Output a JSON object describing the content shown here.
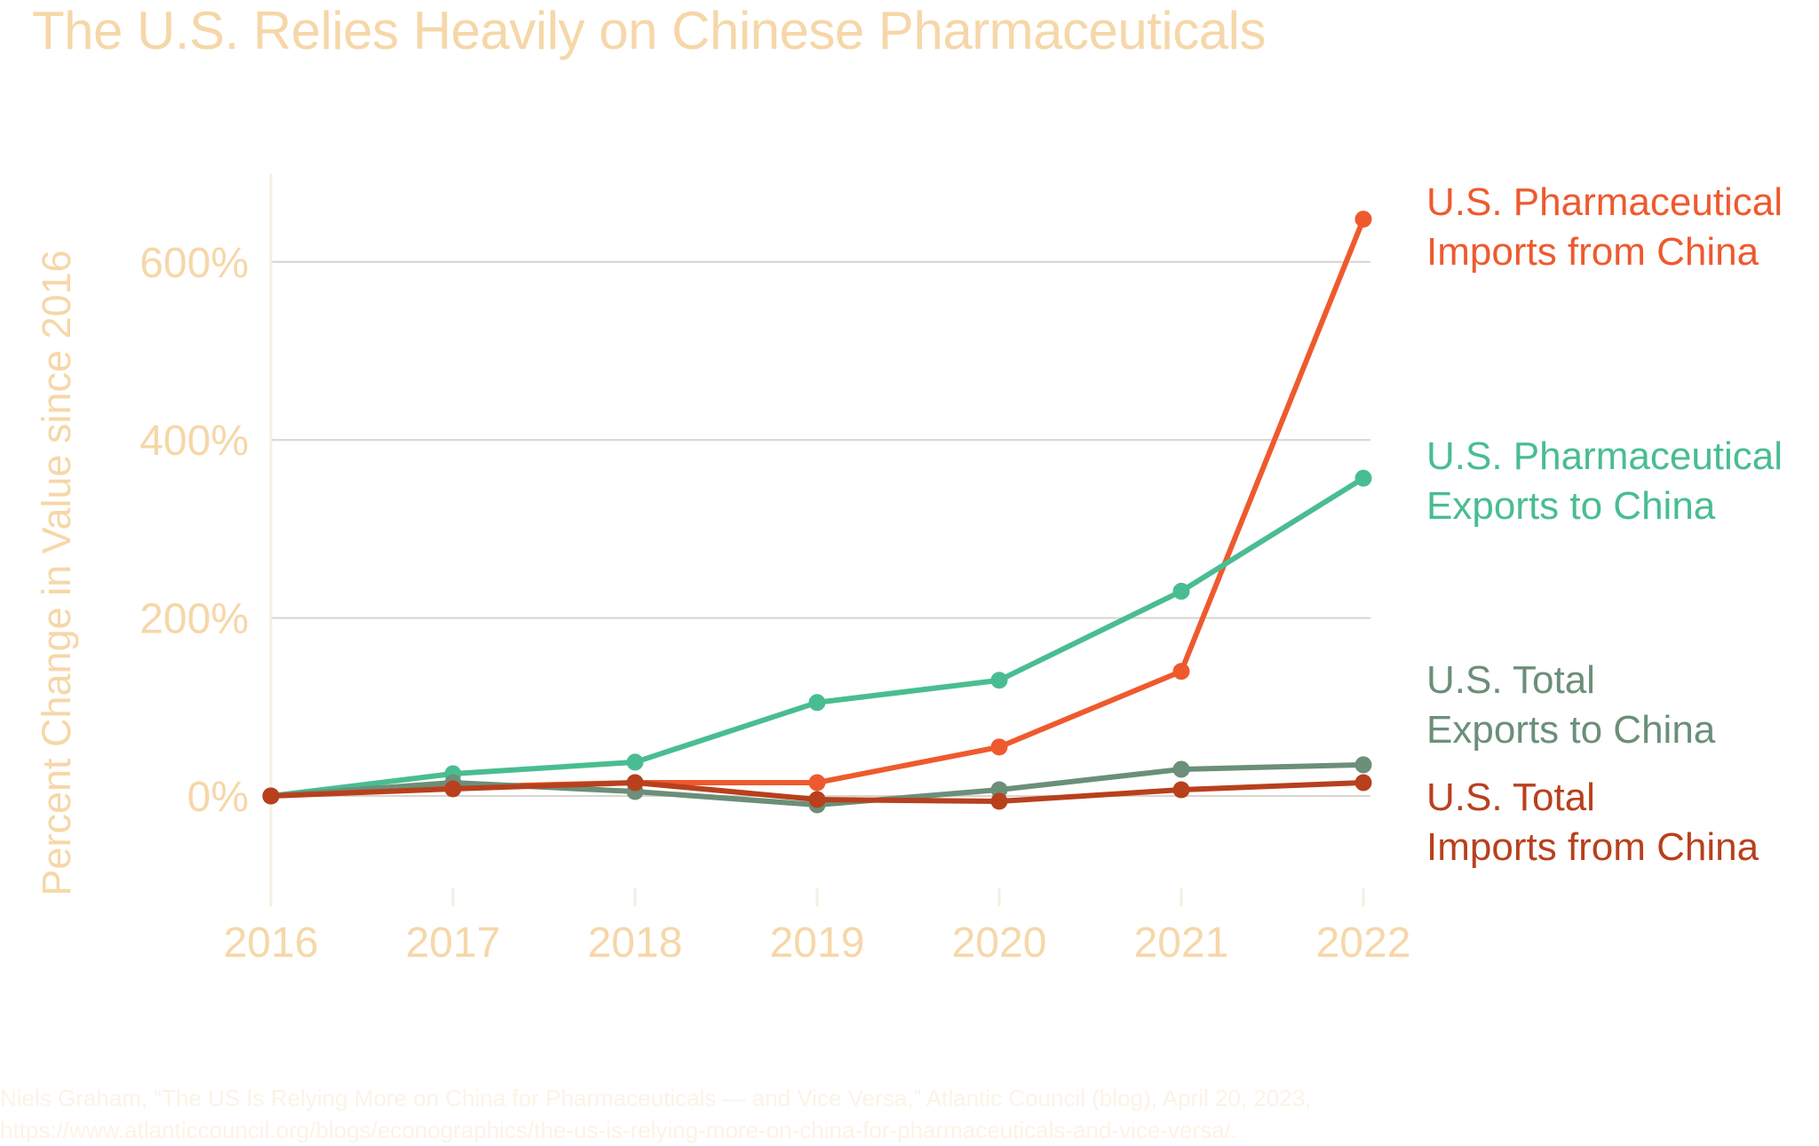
{
  "chart_data": {
    "type": "line",
    "title": "The U.S. Relies Heavily on Chinese Pharmaceuticals",
    "ylabel": "Percent Change in Value since 2016",
    "xlabel": "",
    "x": [
      "2016",
      "2017",
      "2018",
      "2019",
      "2020",
      "2021",
      "2022"
    ],
    "yticks": [
      "0%",
      "200%",
      "400%",
      "600%"
    ],
    "ytick_values": [
      0,
      200,
      400,
      600
    ],
    "ylim": [
      -100,
      700
    ],
    "grid": true,
    "series": [
      {
        "name_lines": [
          "U.S. Pharmaceutical",
          "Imports from China"
        ],
        "color": "#ee5a2e",
        "values": [
          0,
          10,
          15,
          15,
          55,
          140,
          648
        ]
      },
      {
        "name_lines": [
          "U.S. Pharmaceutical",
          "Exports to China"
        ],
        "color": "#49bd91",
        "values": [
          0,
          25,
          38,
          105,
          130,
          230,
          357
        ]
      },
      {
        "name_lines": [
          "U.S. Total",
          "Exports to China"
        ],
        "color": "#6b8f79",
        "values": [
          0,
          15,
          5,
          -10,
          7,
          30,
          35
        ]
      },
      {
        "name_lines": [
          "U.S. Total",
          "Imports from China"
        ],
        "color": "#b8401d",
        "values": [
          0,
          8,
          15,
          -4,
          -6,
          7,
          15
        ]
      }
    ]
  },
  "colors": {
    "axis_text": "#f6d7a9",
    "grid": "#d9d4cd",
    "axis_line": "#f5efe2"
  },
  "source": {
    "text": "Niels Graham, “The US Is Relying More on China for Pharmaceuticals — and Vice Versa,” Atlantic Council (blog), April 20, 2023, https://www.atlanticcouncil.org/blogs/econographics/the-us-is-relying-more-on-china-for-pharmaceuticals-and-vice-versa/."
  }
}
